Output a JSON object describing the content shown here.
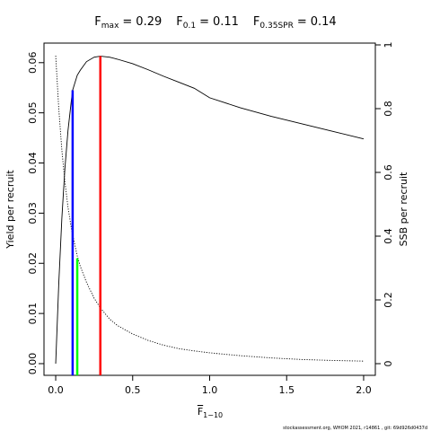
{
  "chart_data": {
    "type": "line",
    "title_separator": "=",
    "reference_lines": [
      {
        "base": "F",
        "sub": "max",
        "x": 0.29,
        "top": 0.0613,
        "color": "#ff0000"
      },
      {
        "base": "F",
        "sub": "0.1",
        "x": 0.11,
        "top": 0.0545,
        "color": "#0000ff"
      },
      {
        "base": "F",
        "sub": "0.35SPR",
        "x": 0.14,
        "top": 0.021,
        "color": "#00ff00"
      }
    ],
    "xlabel": {
      "base": "F",
      "sub": "1−10"
    },
    "ylabel": "Yield per recruit",
    "y2label": "SSB per recruit",
    "footer": "stockassessment.org, WHOM 2021, r14861 , git: 69d926d0437d",
    "x": [
      0,
      0.02,
      0.04,
      0.06,
      0.08,
      0.1,
      0.11,
      0.14,
      0.16,
      0.2,
      0.25,
      0.29,
      0.35,
      0.4,
      0.5,
      0.6,
      0.7,
      0.8,
      0.9,
      1.0,
      1.2,
      1.4,
      1.6,
      1.8,
      2.0
    ],
    "series": [
      {
        "name": "Yield per recruit",
        "color": "#000000",
        "dash": "solid",
        "values": [
          0,
          0.016,
          0.029,
          0.039,
          0.0465,
          0.052,
          0.0545,
          0.0575,
          0.0585,
          0.0602,
          0.0611,
          0.0613,
          0.0611,
          0.0607,
          0.0598,
          0.0586,
          0.0573,
          0.0561,
          0.0549,
          0.053,
          0.051,
          0.0493,
          0.0478,
          0.0463,
          0.0448
        ]
      },
      {
        "name": "SSB per recruit",
        "color": "#000000",
        "dash": "dotted",
        "axis": "y2",
        "values": [
          0.966,
          0.8,
          0.67,
          0.57,
          0.49,
          0.43,
          0.405,
          0.338,
          0.305,
          0.255,
          0.205,
          0.175,
          0.14,
          0.12,
          0.093,
          0.073,
          0.058,
          0.047,
          0.04,
          0.034,
          0.025,
          0.018,
          0.013,
          0.01,
          0.008
        ]
      }
    ],
    "xlim": [
      -0.076,
      2.076
    ],
    "ylim": [
      -0.00233,
      0.0639
    ],
    "y2lim": [
      -0.0366,
      1.0056
    ],
    "xticks": [
      {
        "value": 0,
        "label": "0.0"
      },
      0.5,
      {
        "value": 1,
        "label": "1.0"
      },
      1.5,
      {
        "value": 2,
        "label": "2.0"
      }
    ],
    "yticks": [
      {
        "value": 0,
        "label": "0.00"
      },
      0.01,
      0.02,
      0.03,
      0.04,
      0.05,
      0.06
    ],
    "y2ticks": [
      0,
      0.2,
      0.4,
      0.6,
      0.8,
      1
    ]
  }
}
